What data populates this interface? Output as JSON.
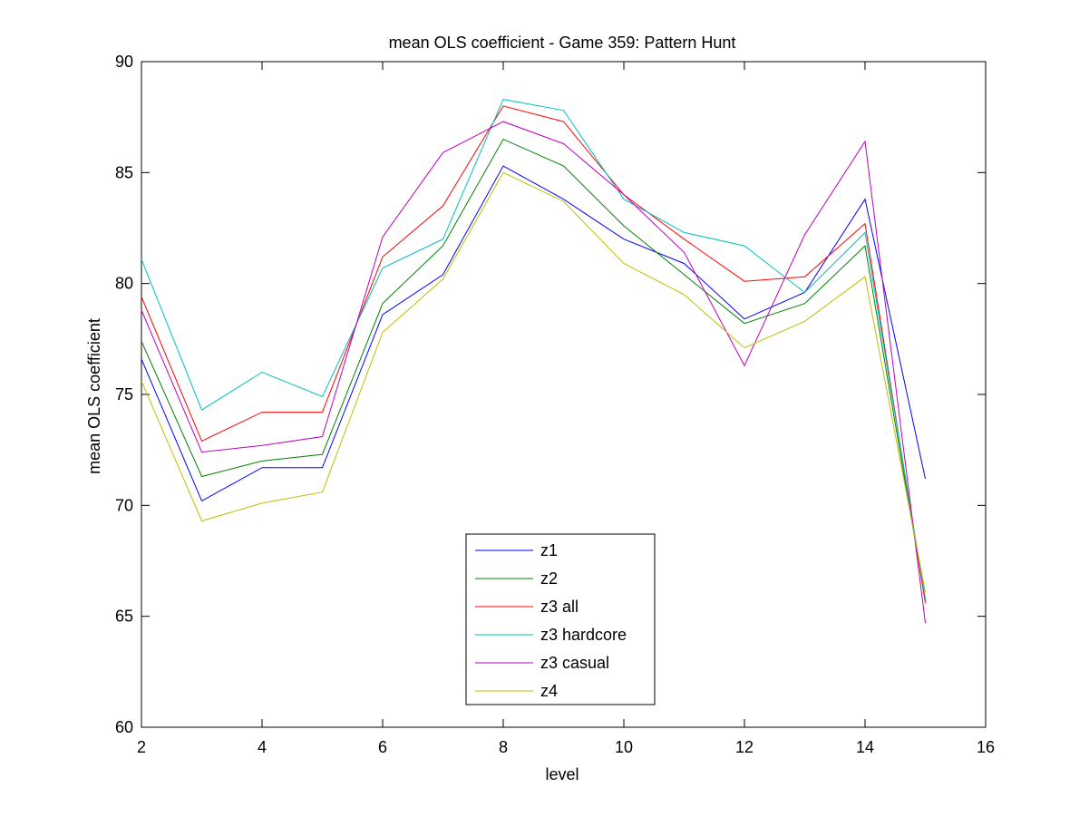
{
  "chart_data": {
    "type": "line",
    "title": "mean OLS coefficient - Game 359: Pattern Hunt",
    "xlabel": "level",
    "ylabel": "mean OLS coefficient",
    "xlim": [
      2,
      16
    ],
    "ylim": [
      60,
      90
    ],
    "xticks": [
      2,
      4,
      6,
      8,
      10,
      12,
      14,
      16
    ],
    "yticks": [
      60,
      65,
      70,
      75,
      80,
      85,
      90
    ],
    "grid": false,
    "legend_position": "bottom-center",
    "x": [
      2,
      3,
      4,
      5,
      6,
      7,
      8,
      9,
      10,
      11,
      12,
      13,
      14,
      15
    ],
    "series": [
      {
        "name": "z1",
        "color": "#0000ff",
        "values": [
          76.6,
          70.2,
          71.7,
          71.7,
          78.6,
          80.4,
          85.3,
          83.8,
          82.0,
          80.9,
          78.4,
          79.6,
          83.8,
          71.2
        ]
      },
      {
        "name": "z2",
        "color": "#008000",
        "values": [
          77.4,
          71.3,
          72.0,
          72.3,
          79.1,
          81.7,
          86.5,
          85.3,
          82.6,
          80.4,
          78.2,
          79.1,
          81.7,
          65.7
        ]
      },
      {
        "name": "z3 all",
        "color": "#ff0000",
        "values": [
          79.4,
          72.9,
          74.2,
          74.2,
          81.2,
          83.5,
          88.0,
          87.3,
          84.0,
          82.0,
          80.1,
          80.3,
          82.7,
          65.6
        ]
      },
      {
        "name": "z3 hardcore",
        "color": "#00bfbf",
        "values": [
          81.1,
          74.3,
          76.0,
          74.9,
          80.7,
          82.0,
          88.3,
          87.8,
          83.8,
          82.3,
          81.7,
          79.6,
          82.3,
          65.8
        ]
      },
      {
        "name": "z3 casual",
        "color": "#bf00bf",
        "values": [
          78.8,
          72.4,
          72.7,
          73.1,
          82.1,
          85.9,
          87.3,
          86.3,
          84.0,
          81.4,
          76.3,
          82.2,
          86.4,
          64.7
        ]
      },
      {
        "name": "z4",
        "color": "#bfbf00",
        "values": [
          75.6,
          69.3,
          70.1,
          70.6,
          77.8,
          80.2,
          85.0,
          83.7,
          80.9,
          79.5,
          77.1,
          78.3,
          80.3,
          66.1
        ]
      }
    ]
  }
}
